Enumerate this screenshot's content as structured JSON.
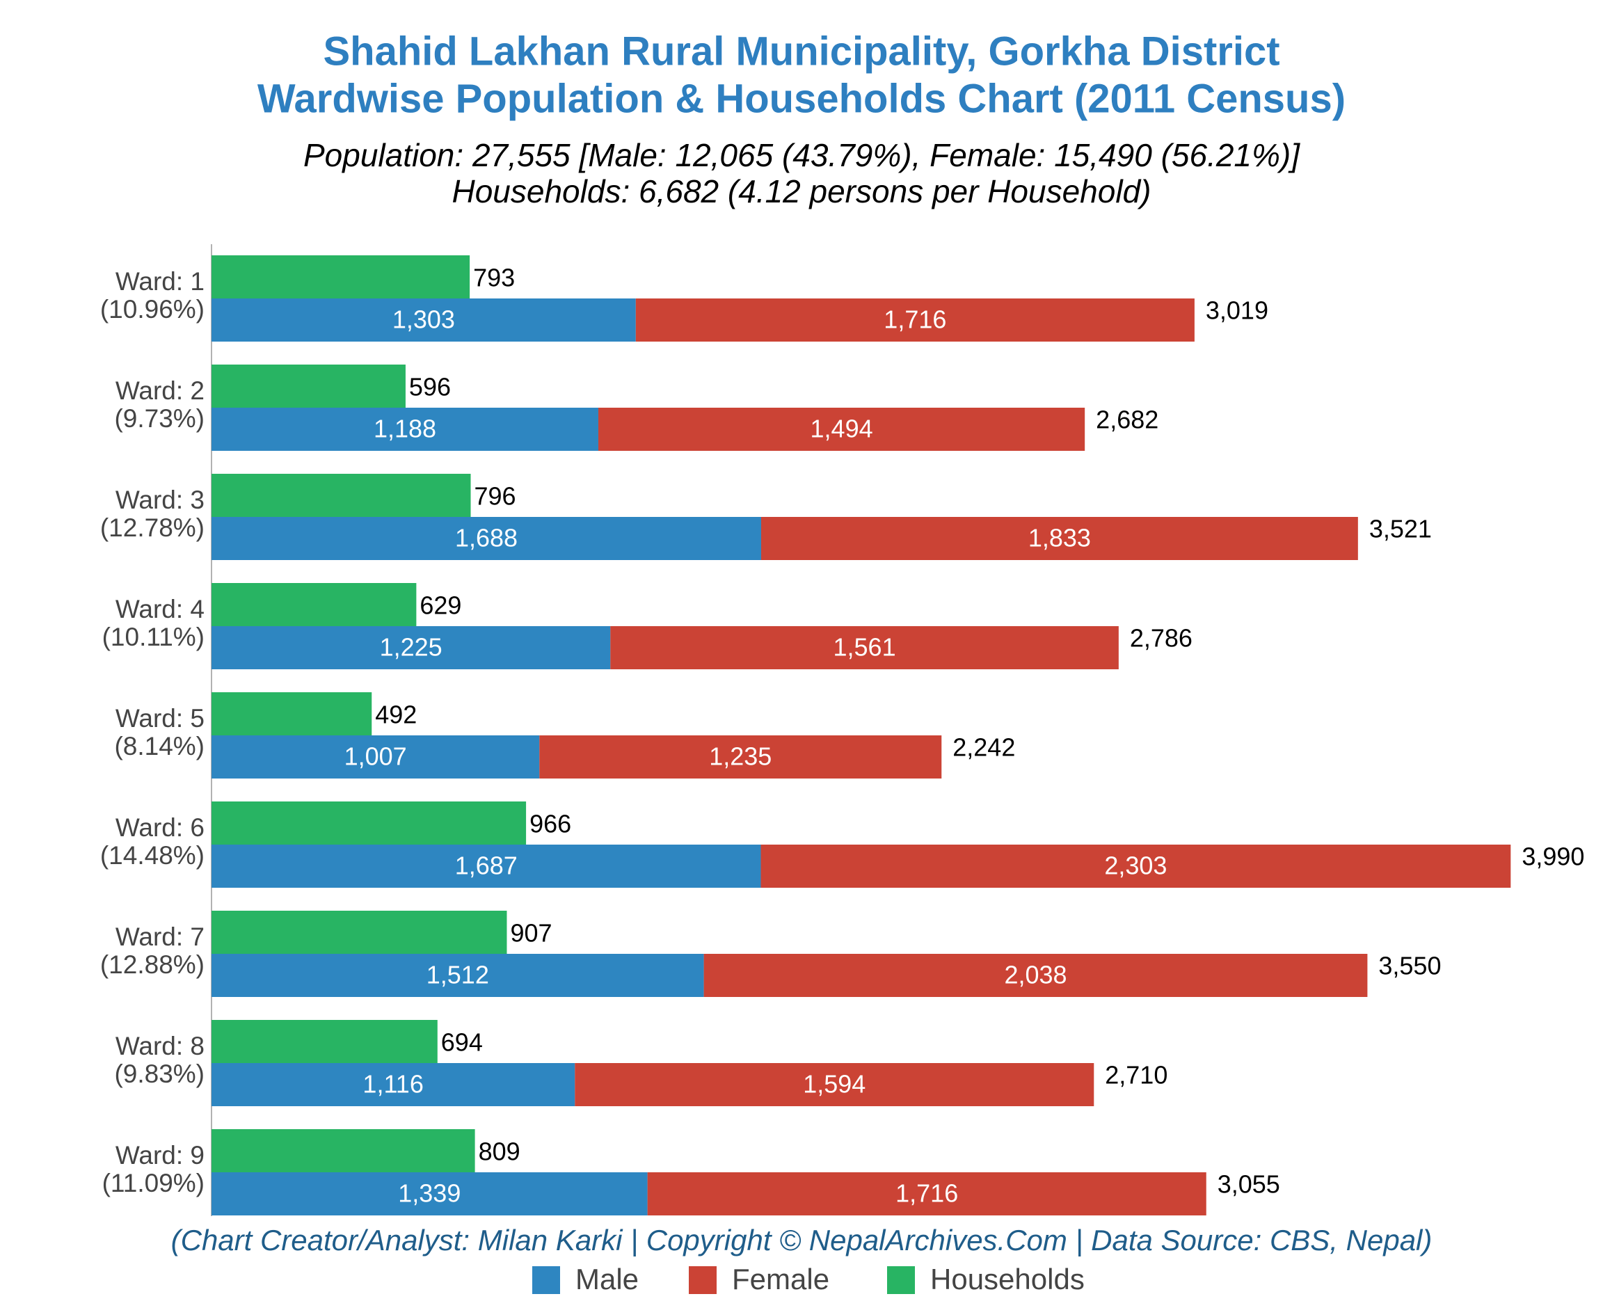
{
  "chart_data": {
    "type": "bar",
    "title": [
      "Shahid Lakhan Rural Municipality, Gorkha District",
      "Wardwise Population & Households Chart (2011 Census)"
    ],
    "subtitle": [
      "Population: 27,555 [Male: 12,065 (43.79%), Female: 15,490 (56.21%)]",
      "Households: 6,682 (4.12 persons per Household)"
    ],
    "note": "(Chart Creator/Analyst: Milan Karki | Copyright © NepalArchives.Com | Data Source: CBS, Nepal)",
    "categories": [
      "Ward: 1",
      "Ward: 2",
      "Ward: 3",
      "Ward: 4",
      "Ward: 5",
      "Ward: 6",
      "Ward: 7",
      "Ward: 8",
      "Ward: 9"
    ],
    "category_shares": [
      "(10.96%)",
      "(9.73%)",
      "(12.78%)",
      "(10.11%)",
      "(8.14%)",
      "(14.48%)",
      "(12.88%)",
      "(9.83%)",
      "(11.09%)"
    ],
    "series": [
      {
        "name": "Male",
        "color": "#2e86c1",
        "stack": "population",
        "values": [
          1303,
          1188,
          1688,
          1225,
          1007,
          1687,
          1512,
          1116,
          1339
        ],
        "value_labels": [
          "1,303",
          "1,188",
          "1,688",
          "1,225",
          "1,007",
          "1,687",
          "1,512",
          "1,116",
          "1,339"
        ]
      },
      {
        "name": "Female",
        "color": "#cb4335",
        "stack": "population",
        "values": [
          1716,
          1494,
          1833,
          1561,
          1235,
          2303,
          2038,
          1594,
          1716
        ],
        "value_labels": [
          "1,716",
          "1,494",
          "1,833",
          "1,561",
          "1,235",
          "2,303",
          "2,038",
          "1,594",
          "1,716"
        ]
      },
      {
        "name": "Households",
        "color": "#28b463",
        "stack": "households",
        "values": [
          793,
          596,
          796,
          629,
          492,
          966,
          907,
          694,
          809
        ]
      }
    ],
    "totals": [
      3019,
      2682,
      3521,
      2786,
      2242,
      3990,
      3550,
      2710,
      3055
    ],
    "total_labels": [
      "3,019",
      "2,682",
      "3,521",
      "2,786",
      "2,242",
      "3,990",
      "3,550",
      "2,710",
      "3,055"
    ],
    "xlim": [
      0,
      4250
    ],
    "legend": "bottom"
  }
}
